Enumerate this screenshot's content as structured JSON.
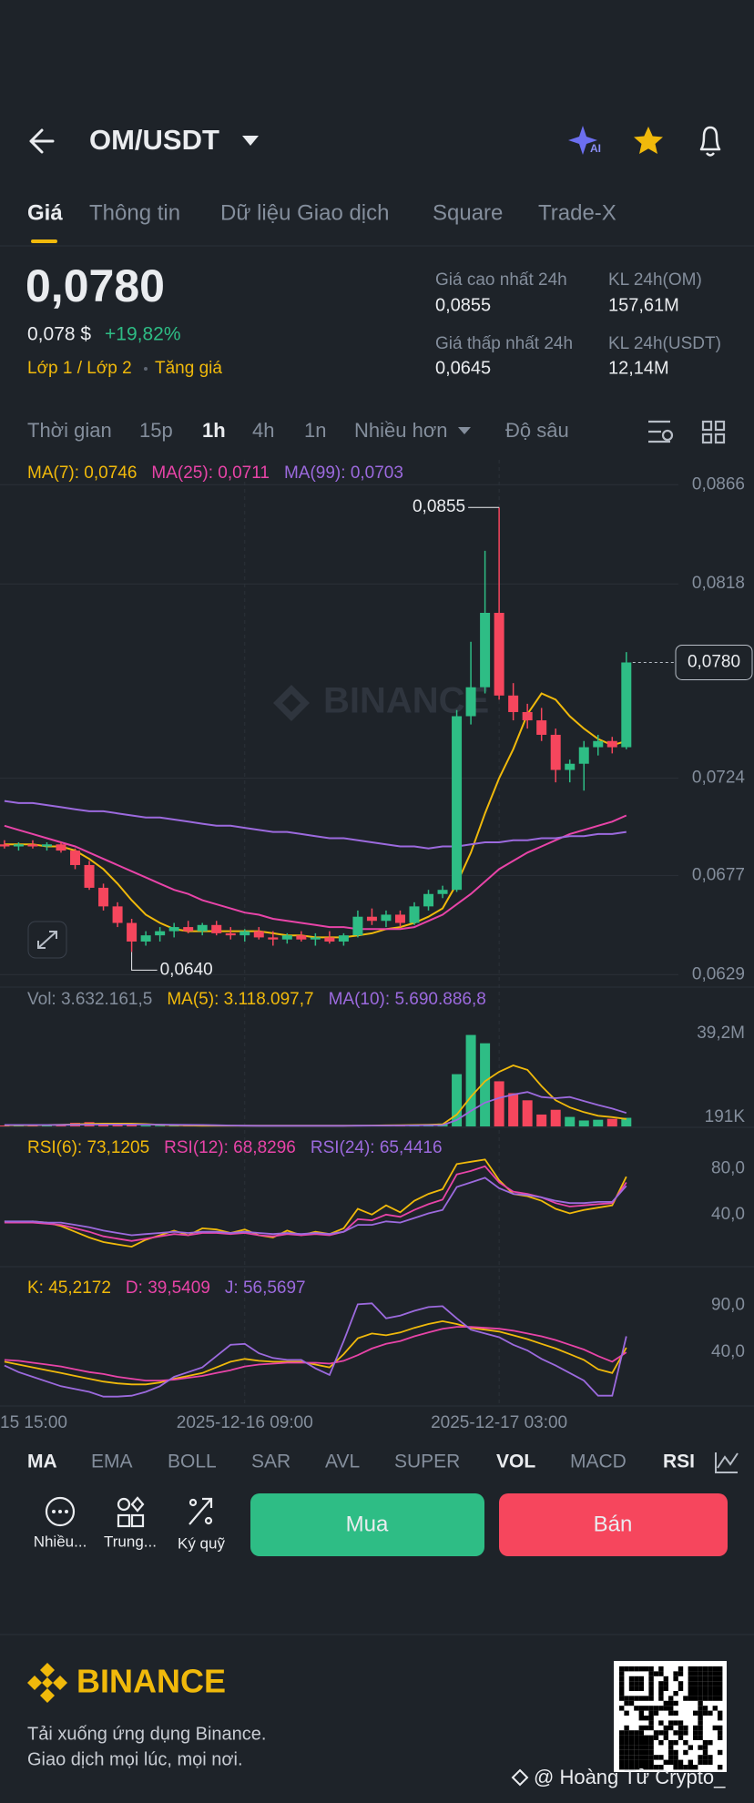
{
  "header": {
    "pair": "OM/USDT",
    "ai_badge": "AI"
  },
  "tabs": [
    "Giá",
    "Thông tin",
    "Dữ liệu Giao dịch",
    "Square",
    "Trade-X"
  ],
  "ticker": {
    "price": "0,0780",
    "price_usd": "0,078 $",
    "change": "+19,82%",
    "tags": [
      "Lớp 1 / Lớp 2",
      "Tăng giá"
    ]
  },
  "stats": [
    {
      "label": "Giá cao nhất 24h",
      "value": "0,0855"
    },
    {
      "label": "KL 24h(OM)",
      "value": "157,61M"
    },
    {
      "label": "Giá thấp nhất 24h",
      "value": "0,0645"
    },
    {
      "label": "KL 24h(USDT)",
      "value": "12,14M"
    }
  ],
  "timeframes": [
    "Thời gian",
    "15p",
    "1h",
    "4h",
    "1n",
    "Nhiều hơn",
    "Độ sâu"
  ],
  "chart_data": [
    {
      "type": "candlestick",
      "watermark": "BINANCE",
      "up_color": "#2ebd85",
      "down_color": "#f6465d",
      "open": [
        0.0692,
        0.0691,
        0.0692,
        0.0691,
        0.0692,
        0.0689,
        0.0682,
        0.0671,
        0.0662,
        0.0654,
        0.0645,
        0.0648,
        0.065,
        0.0652,
        0.065,
        0.0653,
        0.0649,
        0.0648,
        0.065,
        0.0647,
        0.0646,
        0.0648,
        0.0646,
        0.0647,
        0.0645,
        0.0648,
        0.0657,
        0.0655,
        0.0658,
        0.0654,
        0.0662,
        0.0668,
        0.067,
        0.0754,
        0.0768,
        0.0804,
        0.0764,
        0.0756,
        0.0752,
        0.0745,
        0.0728,
        0.0731,
        0.0739,
        0.0742,
        0.0739
      ],
      "high": [
        0.0694,
        0.0693,
        0.0694,
        0.0693,
        0.0693,
        0.069,
        0.0684,
        0.0673,
        0.0664,
        0.0656,
        0.065,
        0.0652,
        0.0654,
        0.0655,
        0.0654,
        0.0655,
        0.0652,
        0.0651,
        0.0652,
        0.065,
        0.0649,
        0.065,
        0.0649,
        0.065,
        0.0649,
        0.066,
        0.0661,
        0.066,
        0.066,
        0.0664,
        0.067,
        0.0672,
        0.0757,
        0.079,
        0.0834,
        0.0855,
        0.077,
        0.076,
        0.0758,
        0.0748,
        0.0733,
        0.0742,
        0.0745,
        0.0744,
        0.0785
      ],
      "low": [
        0.069,
        0.0689,
        0.069,
        0.0689,
        0.0688,
        0.068,
        0.067,
        0.066,
        0.0652,
        0.064,
        0.0643,
        0.0645,
        0.0647,
        0.0649,
        0.0648,
        0.0648,
        0.0646,
        0.0645,
        0.0646,
        0.0643,
        0.0644,
        0.0645,
        0.0643,
        0.0644,
        0.0643,
        0.0647,
        0.0653,
        0.0652,
        0.0652,
        0.0653,
        0.066,
        0.0666,
        0.0669,
        0.075,
        0.0765,
        0.0762,
        0.0752,
        0.0748,
        0.0742,
        0.0722,
        0.0722,
        0.0718,
        0.0735,
        0.0736,
        0.0738
      ],
      "close": [
        0.0691,
        0.0692,
        0.0691,
        0.0692,
        0.0689,
        0.0682,
        0.0671,
        0.0662,
        0.0654,
        0.0645,
        0.0648,
        0.065,
        0.0652,
        0.065,
        0.0653,
        0.0649,
        0.0648,
        0.065,
        0.0647,
        0.0646,
        0.0648,
        0.0646,
        0.0647,
        0.0645,
        0.0648,
        0.0657,
        0.0655,
        0.0658,
        0.0654,
        0.0662,
        0.0668,
        0.067,
        0.0754,
        0.0768,
        0.0804,
        0.0764,
        0.0756,
        0.0752,
        0.0745,
        0.0728,
        0.0731,
        0.0739,
        0.0742,
        0.0739,
        0.078
      ],
      "series": [
        {
          "name": "MA(7): 0,0746",
          "color": "#f0b90b",
          "values": [
            0.0692,
            0.0692,
            0.0692,
            0.0691,
            0.0691,
            0.0689,
            0.0685,
            0.068,
            0.0673,
            0.0665,
            0.0658,
            0.0654,
            0.0651,
            0.065,
            0.065,
            0.065,
            0.065,
            0.065,
            0.065,
            0.0649,
            0.0648,
            0.0648,
            0.0647,
            0.0647,
            0.0647,
            0.0648,
            0.0649,
            0.0651,
            0.0652,
            0.0654,
            0.0657,
            0.0661,
            0.0673,
            0.0688,
            0.0707,
            0.0724,
            0.0738,
            0.0755,
            0.0765,
            0.0762,
            0.0754,
            0.0748,
            0.0743,
            0.074,
            0.0742
          ]
        },
        {
          "name": "MA(25): 0,0711",
          "color": "#e844a8",
          "values": [
            0.0701,
            0.0699,
            0.0697,
            0.0695,
            0.0693,
            0.0691,
            0.0688,
            0.0685,
            0.0682,
            0.0679,
            0.0676,
            0.0673,
            0.067,
            0.0668,
            0.0665,
            0.0663,
            0.0661,
            0.0659,
            0.0658,
            0.0656,
            0.0655,
            0.0654,
            0.0653,
            0.0652,
            0.0652,
            0.0651,
            0.0651,
            0.0651,
            0.0651,
            0.0652,
            0.0655,
            0.0658,
            0.0663,
            0.0668,
            0.0674,
            0.068,
            0.0684,
            0.0688,
            0.0691,
            0.0694,
            0.0697,
            0.0699,
            0.0701,
            0.0703,
            0.0706
          ]
        },
        {
          "name": "MA(99): 0,0703",
          "color": "#9c6ade",
          "values": [
            0.0713,
            0.0712,
            0.0712,
            0.0711,
            0.071,
            0.0709,
            0.0708,
            0.0708,
            0.0707,
            0.0706,
            0.0705,
            0.0705,
            0.0704,
            0.0703,
            0.0702,
            0.0701,
            0.0701,
            0.07,
            0.0699,
            0.0698,
            0.0698,
            0.0697,
            0.0696,
            0.0695,
            0.0695,
            0.0694,
            0.0693,
            0.0692,
            0.0691,
            0.0691,
            0.069,
            0.0691,
            0.0691,
            0.0692,
            0.0693,
            0.0693,
            0.0694,
            0.0694,
            0.0695,
            0.0695,
            0.0696,
            0.0696,
            0.0697,
            0.0697,
            0.0698
          ]
        }
      ],
      "ylim": [
        0.06234,
        0.0878
      ],
      "yticks": [
        {
          "value": 0.0866,
          "label": "0,0866"
        },
        {
          "value": 0.0818,
          "label": "0,0818"
        },
        {
          "value": 0.0724,
          "label": "0,0724"
        },
        {
          "value": 0.0677,
          "label": "0,0677"
        },
        {
          "value": 0.0629,
          "label": "0,0629"
        }
      ],
      "grid": true,
      "high_label": "0,0855",
      "low_label": "0,0640",
      "last_label": "0,0780"
    },
    {
      "type": "bar",
      "title": "Vol: 3.632.161,5",
      "values": [
        400000,
        350000,
        300000,
        400000,
        600000,
        1500000,
        1800000,
        1200000,
        800000,
        900000,
        400000,
        300000,
        300000,
        250000,
        300000,
        250000,
        200000,
        250000,
        200000,
        250000,
        200000,
        200000,
        250000,
        200000,
        300000,
        600000,
        500000,
        400000,
        500000,
        700000,
        900000,
        1200000,
        22000000,
        38500000,
        35000000,
        19000000,
        14000000,
        11000000,
        5000000,
        7000000,
        4000000,
        2500000,
        2800000,
        3200000,
        3632161.5
      ],
      "series": [
        {
          "name": "MA(5): 3.118.097,7",
          "color": "#f0b90b",
          "values": [
            500000,
            500000,
            500000,
            600000,
            700000,
            900000,
            1100000,
            1200000,
            1200000,
            1200000,
            1000000,
            700000,
            500000,
            400000,
            300000,
            300000,
            300000,
            300000,
            300000,
            300000,
            300000,
            300000,
            300000,
            300000,
            300000,
            350000,
            400000,
            450000,
            500000,
            600000,
            700000,
            900000,
            5000000,
            12500000,
            19000000,
            23000000,
            25700000,
            23800000,
            17000000,
            11000000,
            8000000,
            6000000,
            4500000,
            3900000,
            3118097.7
          ]
        },
        {
          "name": "MA(10): 5.690.886,8",
          "color": "#9c6ade",
          "values": [
            600000,
            600000,
            600000,
            600000,
            650000,
            700000,
            750000,
            800000,
            800000,
            800000,
            800000,
            750000,
            700000,
            650000,
            600000,
            500000,
            400000,
            300000,
            280000,
            260000,
            250000,
            250000,
            250000,
            250000,
            250000,
            300000,
            330000,
            350000,
            380000,
            420000,
            480000,
            550000,
            2700000,
            6500000,
            10000000,
            12000000,
            13400000,
            14500000,
            12400000,
            11900000,
            12400000,
            10700000,
            9000000,
            7500000,
            5690886.8
          ]
        }
      ],
      "ylim": [
        0,
        46000000
      ],
      "yticks": [
        {
          "value": 39200000,
          "label": "39,2M"
        },
        {
          "value": 191000,
          "label": "191K"
        }
      ]
    },
    {
      "type": "line",
      "series": [
        {
          "name": "RSI(6): 73,1205",
          "color": "#f0b90b",
          "values": [
            34,
            33,
            34,
            33,
            30,
            25,
            20,
            16,
            14,
            12,
            18,
            22,
            26,
            22,
            28,
            27,
            24,
            27,
            22,
            20,
            26,
            22,
            25,
            23,
            28,
            45,
            40,
            48,
            42,
            52,
            58,
            62,
            84,
            86,
            88,
            70,
            58,
            56,
            52,
            45,
            41,
            44,
            46,
            48,
            73
          ]
        },
        {
          "name": "RSI(12): 68,8296",
          "color": "#e844a8",
          "values": [
            33,
            33,
            33,
            32,
            31,
            28,
            25,
            21,
            19,
            17,
            19,
            21,
            23,
            22,
            24,
            24,
            23,
            24,
            22,
            21,
            23,
            22,
            23,
            22,
            25,
            36,
            35,
            40,
            38,
            44,
            49,
            53,
            75,
            78,
            82,
            68,
            60,
            58,
            55,
            50,
            47,
            48,
            49,
            50,
            68
          ]
        },
        {
          "name": "RSI(24): 65,4416",
          "color": "#9c6ade",
          "values": [
            34,
            34,
            34,
            33,
            33,
            31,
            29,
            26,
            24,
            22,
            23,
            24,
            25,
            24,
            25,
            25,
            24,
            25,
            24,
            23,
            24,
            23,
            24,
            23,
            25,
            31,
            31,
            34,
            33,
            37,
            41,
            44,
            64,
            68,
            72,
            63,
            58,
            57,
            55,
            52,
            50,
            50,
            51,
            51,
            65
          ]
        }
      ],
      "ylim": [
        -3,
        112
      ],
      "yticks": [
        {
          "value": 80,
          "label": "80,0"
        },
        {
          "value": 40,
          "label": "40,0"
        }
      ]
    },
    {
      "type": "line",
      "series": [
        {
          "name": "K: 45,2172",
          "color": "#f0b90b",
          "values": [
            30,
            27,
            24,
            21,
            18,
            15,
            12,
            9,
            7,
            6,
            6,
            8,
            12,
            15,
            18,
            24,
            30,
            33,
            31,
            30,
            30,
            30,
            27,
            24,
            38,
            55,
            60,
            58,
            61,
            66,
            70,
            73,
            70,
            66,
            64,
            62,
            58,
            54,
            49,
            44,
            38,
            32,
            22,
            18,
            45
          ]
        },
        {
          "name": "D: 39,5409",
          "color": "#e844a8",
          "values": [
            32,
            31,
            29,
            27,
            25,
            22,
            19,
            17,
            14,
            12,
            10,
            10,
            11,
            13,
            15,
            18,
            21,
            25,
            27,
            28,
            29,
            29,
            29,
            28,
            31,
            37,
            44,
            49,
            52,
            57,
            61,
            65,
            67,
            67,
            66,
            65,
            63,
            60,
            57,
            53,
            48,
            43,
            36,
            30,
            40
          ]
        },
        {
          "name": "J: 56,5697",
          "color": "#9c6ade",
          "values": [
            26,
            19,
            14,
            9,
            4,
            1,
            -2,
            -7,
            -7,
            -6,
            -2,
            4,
            14,
            19,
            24,
            36,
            48,
            49,
            39,
            34,
            32,
            32,
            23,
            16,
            52,
            91,
            92,
            76,
            79,
            84,
            88,
            89,
            76,
            64,
            60,
            56,
            48,
            42,
            33,
            26,
            18,
            10,
            -6,
            -6,
            57
          ]
        }
      ],
      "ylim": [
        -15,
        128
      ],
      "yticks": [
        {
          "value": 90,
          "label": "90,0"
        },
        {
          "value": 40,
          "label": "40,0"
        }
      ],
      "xticks": [
        {
          "value": -1,
          "label": "15 15:00"
        },
        {
          "value": 17,
          "label": "2025-12-16 09:00"
        },
        {
          "value": 35,
          "label": "2025-12-17 03:00"
        }
      ]
    }
  ],
  "indicator_tabs": [
    "MA",
    "EMA",
    "BOLL",
    "SAR",
    "AVL",
    "SUPER",
    "VOL",
    "MACD",
    "RSI"
  ],
  "actions": {
    "tools": [
      "Nhiều...",
      "Trung...",
      "Ký quỹ"
    ],
    "buy": "Mua",
    "sell": "Bán"
  },
  "footer": {
    "brand": "BINANCE",
    "lines": [
      "Tải xuống ứng dụng Binance.",
      "Giao dịch mọi lúc, mọi nơi."
    ],
    "watermark": "@ Hoàng Tử Crypto_"
  }
}
